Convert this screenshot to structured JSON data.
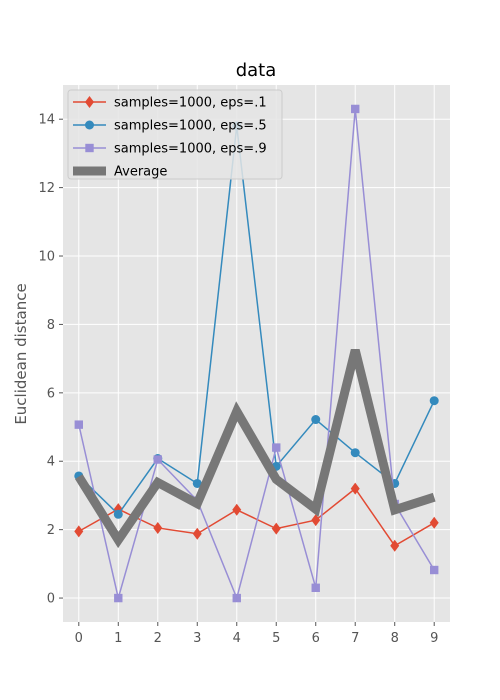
{
  "chart_data": {
    "type": "line",
    "title": "data",
    "xlabel": "",
    "ylabel": "Euclidean distance",
    "x": [
      0,
      1,
      2,
      3,
      4,
      5,
      6,
      7,
      8,
      9
    ],
    "xticks": [
      "0",
      "1",
      "2",
      "3",
      "4",
      "5",
      "6",
      "7",
      "8",
      "9"
    ],
    "yticks": [
      "0",
      "2",
      "4",
      "6",
      "8",
      "10",
      "12",
      "14"
    ],
    "xlim": [
      -0.4,
      9.4
    ],
    "ylim": [
      -0.7,
      15.0
    ],
    "grid": true,
    "legend_position": "top-left",
    "background": "#E5E5E5",
    "series": [
      {
        "name": "samples=1000, eps=.1",
        "color": "#E24A33",
        "marker": "diamond",
        "values": [
          1.95,
          2.6,
          2.05,
          1.88,
          2.58,
          2.03,
          2.28,
          3.2,
          1.53,
          2.2
        ]
      },
      {
        "name": "samples=1000, eps=.5",
        "color": "#348ABD",
        "marker": "circle",
        "values": [
          3.57,
          2.45,
          4.08,
          3.35,
          13.8,
          3.85,
          5.22,
          4.25,
          3.35,
          5.77
        ]
      },
      {
        "name": "samples=1000, eps=.9",
        "color": "#988ED5",
        "marker": "square",
        "values": [
          5.07,
          0.0,
          4.05,
          2.85,
          0.0,
          4.4,
          0.3,
          14.3,
          2.75,
          0.82
        ]
      },
      {
        "name": "Average",
        "color": "#777777",
        "marker": "none",
        "linewidth": "thick",
        "values": [
          3.55,
          1.7,
          3.38,
          2.76,
          5.46,
          3.47,
          2.6,
          7.25,
          2.58,
          2.95
        ]
      }
    ]
  }
}
